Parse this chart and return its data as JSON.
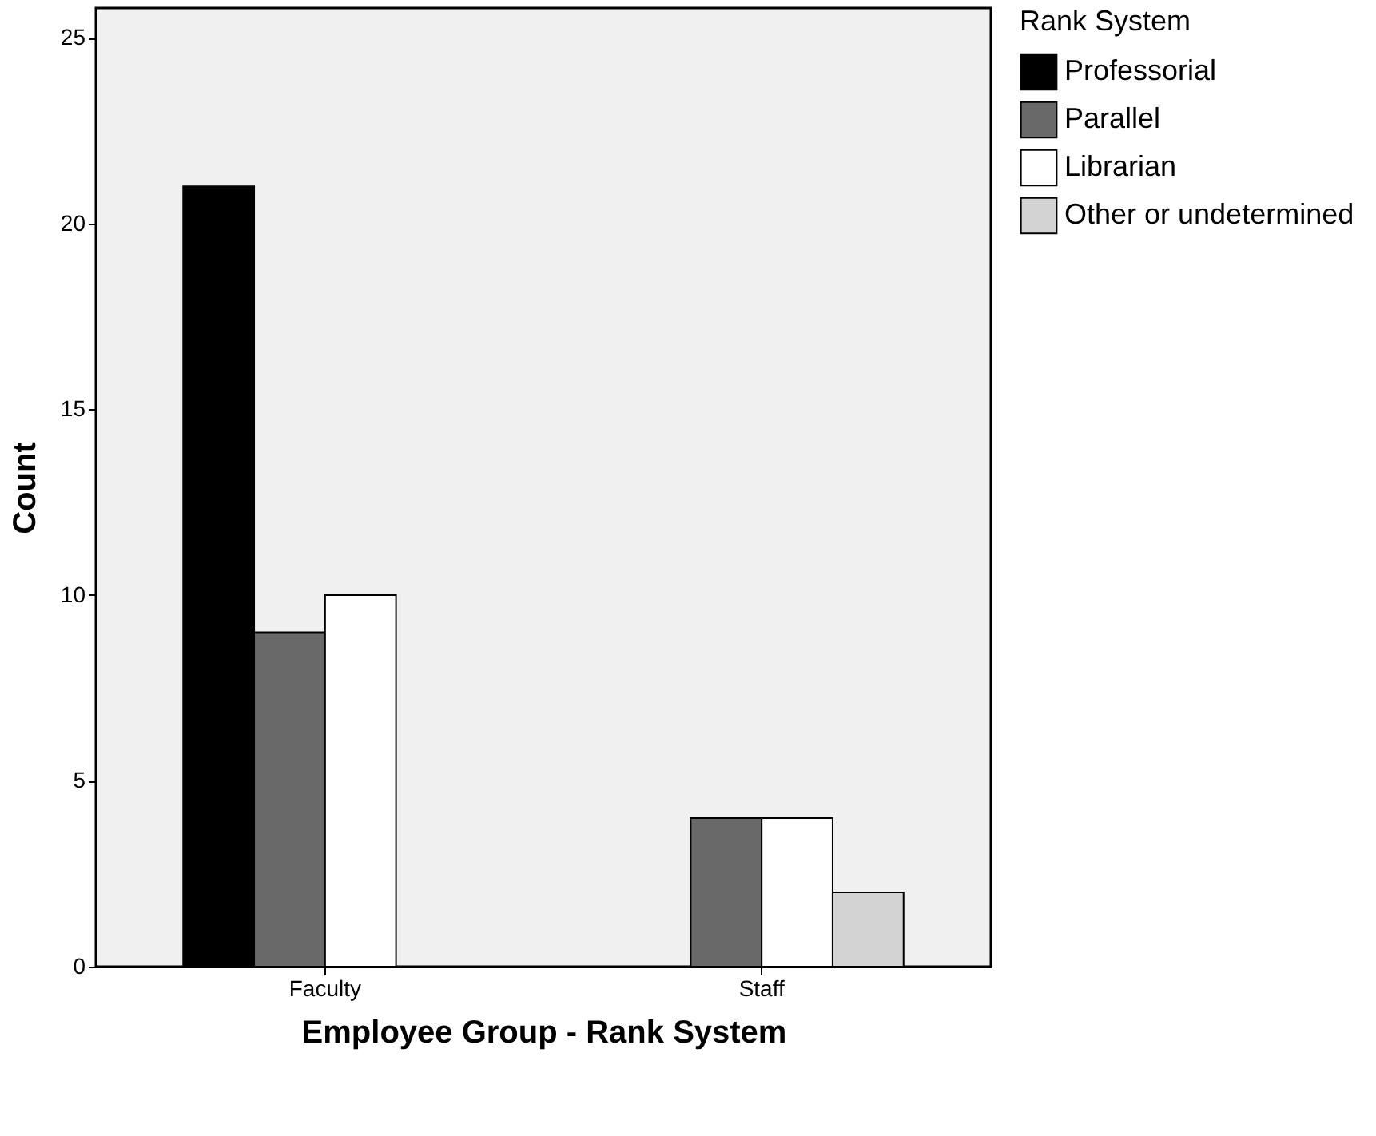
{
  "chart_data": {
    "type": "bar",
    "xlabel": "Employee Group - Rank System",
    "ylabel": "Count",
    "legend_title": "Rank System",
    "categories": [
      "Faculty",
      "Staff"
    ],
    "series": [
      {
        "name": "Professorial",
        "color": "#000000",
        "values": [
          21,
          null
        ]
      },
      {
        "name": "Parallel",
        "color": "#696969",
        "values": [
          9,
          4
        ]
      },
      {
        "name": "Librarian",
        "color": "#ffffff",
        "values": [
          10,
          4
        ]
      },
      {
        "name": "Other or undetermined",
        "color": "#d3d3d3",
        "values": [
          null,
          2
        ]
      }
    ],
    "ylim": [
      0,
      25.8
    ],
    "yticks": [
      0,
      5,
      10,
      15,
      20,
      25
    ],
    "grid": false,
    "legend": "right"
  }
}
